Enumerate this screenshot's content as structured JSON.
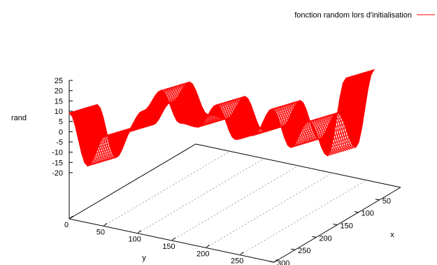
{
  "chart_data": {
    "type": "surface",
    "zlabel": "rand",
    "xlabel": "x",
    "ylabel": "y",
    "ztick_labels": [
      "25",
      "20",
      "15",
      "10",
      "5",
      "0",
      "-5",
      "-10",
      "-15",
      "-20"
    ],
    "ztick_values": [
      25,
      20,
      15,
      10,
      5,
      0,
      -5,
      -10,
      -15,
      -20
    ],
    "xtick_labels": [
      "300",
      "250",
      "200",
      "150",
      "100",
      "50"
    ],
    "xtick_values": [
      300,
      250,
      200,
      150,
      100,
      50
    ],
    "ytick_labels": [
      "0",
      "50",
      "100",
      "150",
      "200",
      "250",
      "300"
    ],
    "ytick_values": [
      0,
      50,
      100,
      150,
      200,
      250,
      300
    ],
    "xrange": [
      0,
      300
    ],
    "yrange": [
      0,
      300
    ],
    "zrange": [
      -20,
      25
    ],
    "legend": {
      "label": "fonction random lors d'initialisation",
      "position": "top-right"
    },
    "series": [
      {
        "name": "fonction random lors d'initialisation",
        "color": "#ff0000",
        "x": [
          0,
          20,
          40,
          60,
          80,
          100,
          120,
          140,
          160,
          180,
          200,
          220,
          240,
          260,
          280,
          300
        ],
        "rand": [
          16,
          -10,
          5,
          6,
          17,
          27,
          11,
          9,
          20,
          3,
          5,
          18,
          -1,
          12,
          -5,
          33
        ]
      }
    ]
  }
}
